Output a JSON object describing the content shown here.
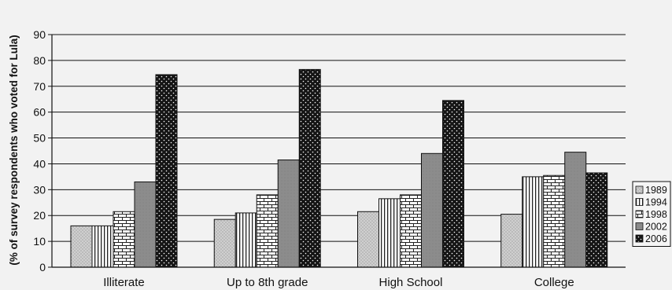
{
  "chart_data": {
    "type": "bar",
    "ylabel": "(% of survey respondents who voted for Lula)",
    "xlabel": "",
    "title": "",
    "categories": [
      "Illiterate",
      "Up to 8th grade",
      "High School",
      "College"
    ],
    "yticks": [
      "0",
      "10",
      "20",
      "30",
      "40",
      "50",
      "60",
      "70",
      "80",
      "90"
    ],
    "ylim": [
      0,
      90
    ],
    "grid": true,
    "legend_position": "right",
    "series": [
      {
        "name": "1989",
        "values": [
          16,
          18.5,
          21.5,
          20.5
        ],
        "pattern": "dots-light"
      },
      {
        "name": "1994",
        "values": [
          16,
          21,
          26.5,
          35
        ],
        "pattern": "vertical-lines"
      },
      {
        "name": "1998",
        "values": [
          21.5,
          28,
          28,
          35.5
        ],
        "pattern": "bricks"
      },
      {
        "name": "2002",
        "values": [
          33,
          41.5,
          44,
          44.5
        ],
        "pattern": "solid-gray"
      },
      {
        "name": "2006",
        "values": [
          74.5,
          76.5,
          64.5,
          36.5
        ],
        "pattern": "dots-dark"
      }
    ],
    "colors": {
      "background": "#f2f2f2",
      "grid": "#111111",
      "bar_outline": "#111111"
    }
  }
}
